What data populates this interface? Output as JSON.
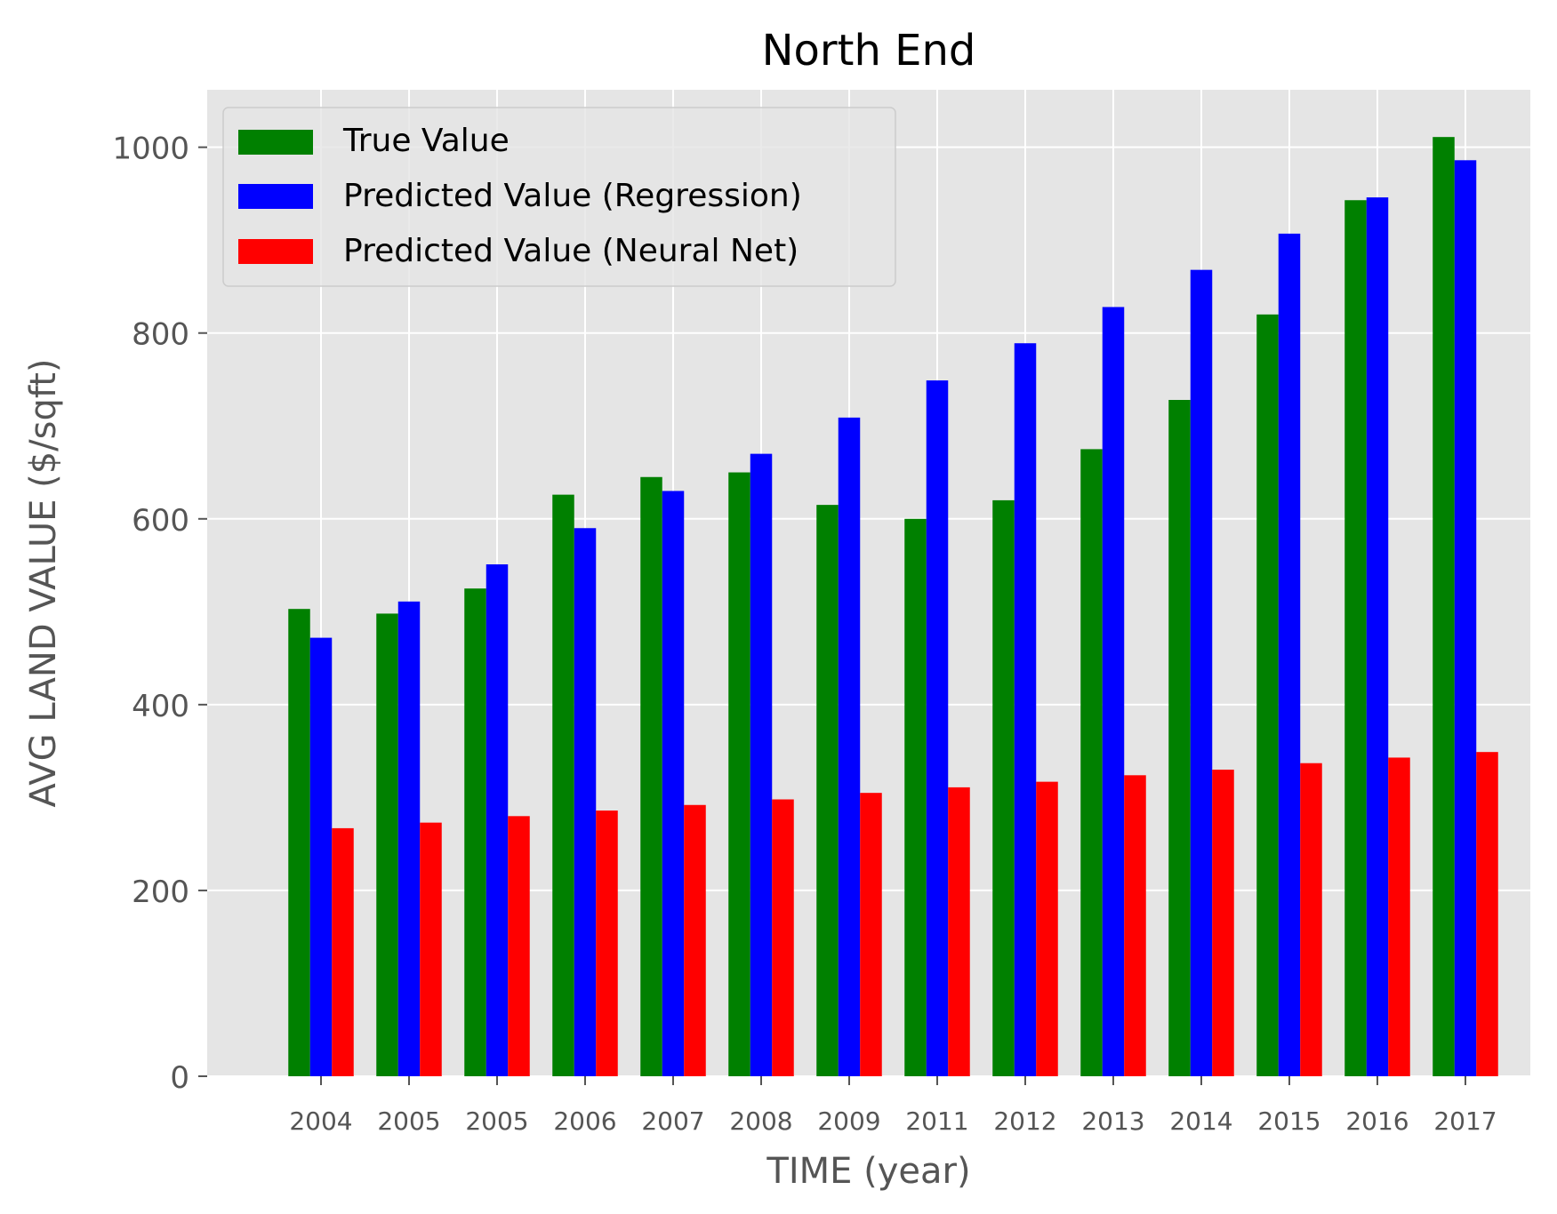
{
  "chart_data": {
    "type": "bar",
    "title": "North End",
    "xlabel": "TIME (year)",
    "ylabel": "AVG LAND VALUE ($/sqft)",
    "categories": [
      "2004",
      "2005",
      "2005",
      "2006",
      "2007",
      "2008",
      "2009",
      "2011",
      "2012",
      "2013",
      "2014",
      "2015",
      "2016",
      "2017"
    ],
    "series": [
      {
        "name": "True Value",
        "color": "#008000",
        "values": [
          503,
          498,
          525,
          626,
          645,
          650,
          615,
          600,
          620,
          675,
          728,
          820,
          943,
          1011
        ]
      },
      {
        "name": "Predicted Value (Regression)",
        "color": "#0000ff",
        "values": [
          472,
          511,
          551,
          590,
          630,
          670,
          709,
          749,
          789,
          828,
          868,
          907,
          946,
          986
        ]
      },
      {
        "name": "Predicted Value (Neural Net)",
        "color": "#ff0000",
        "values": [
          267,
          273,
          280,
          286,
          292,
          298,
          305,
          311,
          317,
          324,
          330,
          337,
          343,
          349
        ]
      }
    ],
    "ylim": [
      0,
      1060
    ],
    "yticks": [
      0,
      200,
      400,
      600,
      800,
      1000
    ],
    "grid": true,
    "legend_position": "top-left",
    "background_color": "#e5e5e5"
  }
}
